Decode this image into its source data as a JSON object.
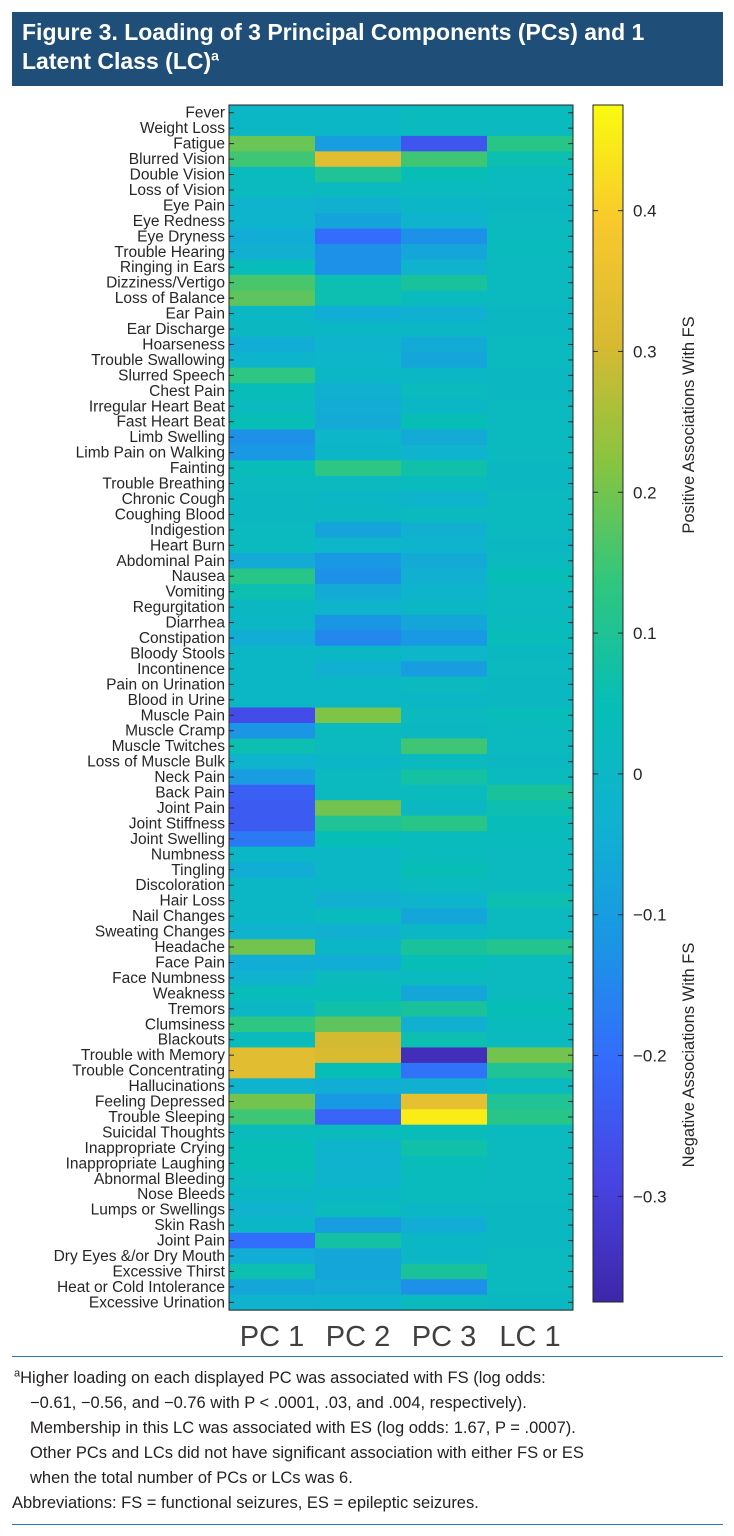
{
  "figure": {
    "title": "Figure 3. Loading of 3 Principal Components (PCs) and 1 Latent Class (LC)",
    "title_sup": "a"
  },
  "colors": {
    "header_bg": "#1f4e79",
    "rule": "#2e75b6",
    "colormap": "parula"
  },
  "chart_data": {
    "type": "heatmap",
    "columns": [
      "PC 1",
      "PC 2",
      "PC 3",
      "LC 1"
    ],
    "rows": [
      "Fever",
      "Weight Loss",
      "Fatigue",
      "Blurred Vision",
      "Double Vision",
      "Loss of Vision",
      "Eye Pain",
      "Eye Redness",
      "Eye Dryness",
      "Trouble Hearing",
      "Ringing in Ears",
      "Dizziness/Vertigo",
      "Loss of Balance",
      "Ear Pain",
      "Ear Discharge",
      "Hoarseness",
      "Trouble Swallowing",
      "Slurred Speech",
      "Chest Pain",
      "Irregular Heart Beat",
      "Fast Heart Beat",
      "Limb Swelling",
      "Limb Pain on Walking",
      "Fainting",
      "Trouble Breathing",
      "Chronic Cough",
      "Coughing Blood",
      "Indigestion",
      "Heart Burn",
      "Abdominal Pain",
      "Nausea",
      "Vomiting",
      "Regurgitation",
      "Diarrhea",
      "Constipation",
      "Bloody Stools",
      "Incontinence",
      "Pain on Urination",
      "Blood in Urine",
      "Muscle Pain",
      "Muscle Cramp",
      "Muscle Twitches",
      "Loss of Muscle Bulk",
      "Neck Pain",
      "Back Pain",
      "Joint Pain",
      "Joint Stiffness",
      "Joint Swelling",
      "Numbness",
      "Tingling",
      "Discoloration",
      "Hair Loss",
      "Nail Changes",
      "Sweating Changes",
      "Headache",
      "Face Pain",
      "Face Numbness",
      "Weakness",
      "Tremors",
      "Clumsiness",
      "Blackouts",
      "Trouble with Memory",
      "Trouble Concentrating",
      "Hallucinations",
      "Feeling Depressed",
      "Trouble Sleeping",
      "Suicidal Thoughts",
      "Inappropriate Crying",
      "Inappropriate Laughing",
      "Abnormal Bleeding",
      "Nose Bleeds",
      "Lumps or Swellings",
      "Skin Rash",
      "Joint Pain",
      "Dry Eyes &/or Dry Mouth",
      "Excessive Thirst",
      "Heat or Cold Intolerance",
      "Excessive Urination"
    ],
    "values": [
      [
        0.0,
        0.0,
        0.03,
        0.03
      ],
      [
        0.0,
        0.0,
        0.02,
        0.02
      ],
      [
        0.19,
        -0.1,
        -0.25,
        0.12
      ],
      [
        0.15,
        0.33,
        0.15,
        0.06
      ],
      [
        0.03,
        0.1,
        0.05,
        0.03
      ],
      [
        0.02,
        0.02,
        0.02,
        0.02
      ],
      [
        -0.03,
        -0.04,
        0.0,
        0.01
      ],
      [
        -0.02,
        -0.08,
        -0.03,
        0.02
      ],
      [
        -0.05,
        -0.2,
        -0.13,
        0.03
      ],
      [
        -0.04,
        -0.13,
        -0.07,
        0.03
      ],
      [
        0.04,
        -0.13,
        -0.03,
        0.02
      ],
      [
        0.16,
        0.06,
        0.09,
        0.02
      ],
      [
        0.18,
        0.06,
        0.03,
        0.02
      ],
      [
        0.0,
        -0.05,
        -0.04,
        0.01
      ],
      [
        0.01,
        0.0,
        0.0,
        0.01
      ],
      [
        -0.05,
        -0.02,
        -0.06,
        0.02
      ],
      [
        -0.02,
        -0.01,
        -0.07,
        0.02
      ],
      [
        0.13,
        0.0,
        0.0,
        0.01
      ],
      [
        0.04,
        -0.04,
        0.03,
        0.01
      ],
      [
        0.02,
        -0.05,
        0.0,
        0.02
      ],
      [
        0.05,
        -0.06,
        0.05,
        0.02
      ],
      [
        -0.13,
        -0.01,
        -0.06,
        0.02
      ],
      [
        -0.11,
        0.0,
        -0.03,
        0.02
      ],
      [
        0.04,
        0.13,
        0.07,
        0.01
      ],
      [
        0.02,
        0.02,
        0.03,
        0.01
      ],
      [
        0.01,
        0.0,
        -0.02,
        0.02
      ],
      [
        0.01,
        0.01,
        0.02,
        0.02
      ],
      [
        0.02,
        -0.08,
        -0.04,
        0.02
      ],
      [
        0.02,
        -0.01,
        -0.02,
        0.01
      ],
      [
        -0.06,
        -0.11,
        -0.06,
        0.02
      ],
      [
        0.12,
        -0.13,
        -0.04,
        0.05
      ],
      [
        0.06,
        -0.06,
        -0.02,
        0.02
      ],
      [
        0.01,
        -0.02,
        0.0,
        0.02
      ],
      [
        0.0,
        -0.12,
        -0.07,
        0.03
      ],
      [
        -0.05,
        -0.15,
        -0.11,
        0.04
      ],
      [
        0.0,
        0.0,
        -0.01,
        0.01
      ],
      [
        0.0,
        -0.04,
        -0.1,
        0.02
      ],
      [
        0.0,
        0.0,
        0.02,
        0.01
      ],
      [
        0.0,
        0.0,
        0.0,
        0.01
      ],
      [
        -0.27,
        0.21,
        0.02,
        0.04
      ],
      [
        -0.12,
        0.02,
        0.01,
        0.02
      ],
      [
        0.06,
        0.02,
        0.15,
        0.02
      ],
      [
        -0.03,
        0.0,
        0.02,
        0.01
      ],
      [
        -0.1,
        0.02,
        0.08,
        0.03
      ],
      [
        -0.23,
        0.02,
        0.03,
        0.09
      ],
      [
        -0.24,
        0.2,
        0.01,
        0.06
      ],
      [
        -0.24,
        0.1,
        0.12,
        0.04
      ],
      [
        -0.18,
        0.05,
        0.03,
        0.03
      ],
      [
        0.0,
        0.0,
        0.03,
        0.02
      ],
      [
        -0.05,
        0.0,
        0.05,
        0.02
      ],
      [
        0.0,
        0.0,
        0.02,
        0.02
      ],
      [
        0.0,
        -0.04,
        -0.02,
        0.06
      ],
      [
        0.0,
        0.03,
        -0.07,
        0.02
      ],
      [
        -0.03,
        -0.04,
        0.0,
        0.02
      ],
      [
        0.2,
        0.0,
        0.09,
        0.11
      ],
      [
        -0.05,
        -0.05,
        0.05,
        0.03
      ],
      [
        -0.03,
        0.02,
        0.02,
        0.02
      ],
      [
        0.04,
        0.04,
        -0.07,
        0.02
      ],
      [
        0.0,
        0.07,
        0.09,
        0.05
      ],
      [
        0.13,
        0.18,
        -0.04,
        0.03
      ],
      [
        0.03,
        0.3,
        0.06,
        0.02
      ],
      [
        0.33,
        0.31,
        -0.35,
        0.2
      ],
      [
        0.33,
        0.05,
        -0.19,
        0.1
      ],
      [
        -0.03,
        -0.05,
        -0.04,
        0.02
      ],
      [
        0.2,
        -0.11,
        0.34,
        0.1
      ],
      [
        0.15,
        -0.22,
        0.45,
        0.12
      ],
      [
        0.03,
        0.03,
        0.04,
        0.02
      ],
      [
        0.05,
        -0.02,
        0.07,
        0.02
      ],
      [
        0.05,
        -0.03,
        0.04,
        0.02
      ],
      [
        0.03,
        -0.02,
        0.03,
        0.02
      ],
      [
        0.0,
        0.0,
        0.03,
        0.02
      ],
      [
        -0.03,
        0.03,
        0.0,
        0.01
      ],
      [
        0.0,
        -0.1,
        -0.05,
        0.01
      ],
      [
        -0.2,
        0.08,
        0.0,
        0.01
      ],
      [
        -0.05,
        -0.07,
        0.0,
        0.02
      ],
      [
        0.06,
        -0.07,
        0.09,
        0.02
      ],
      [
        -0.07,
        -0.06,
        -0.13,
        0.02
      ],
      [
        -0.03,
        -0.02,
        0.02,
        0.01
      ]
    ],
    "colorbar": {
      "range": [
        -0.375,
        0.475
      ],
      "ticks": [
        0.4,
        0.3,
        0.2,
        0.1,
        0,
        -0.1,
        -0.2,
        -0.3
      ],
      "tick_labels": [
        "0.4",
        "0.3",
        "0.2",
        "0.1",
        "0",
        "−0.1",
        "−0.2",
        "−0.3"
      ],
      "label_positive": "Positive Associations With FS",
      "label_negative": "Negative Associations With FS"
    }
  },
  "footnote": {
    "marker": "a",
    "lines": [
      "Higher loading on each displayed PC was associated with FS (log odds:",
      "−0.61, −0.56, and −0.76 with P < .0001, .03, and .004, respectively).",
      "Membership in this LC was associated with ES (log odds: 1.67, P = .0007).",
      "Other PCs and LCs did not have significant association with either FS or ES",
      "when the total number of PCs or LCs was 6."
    ],
    "abbreviations": "Abbreviations: FS = functional seizures, ES = epileptic seizures."
  }
}
